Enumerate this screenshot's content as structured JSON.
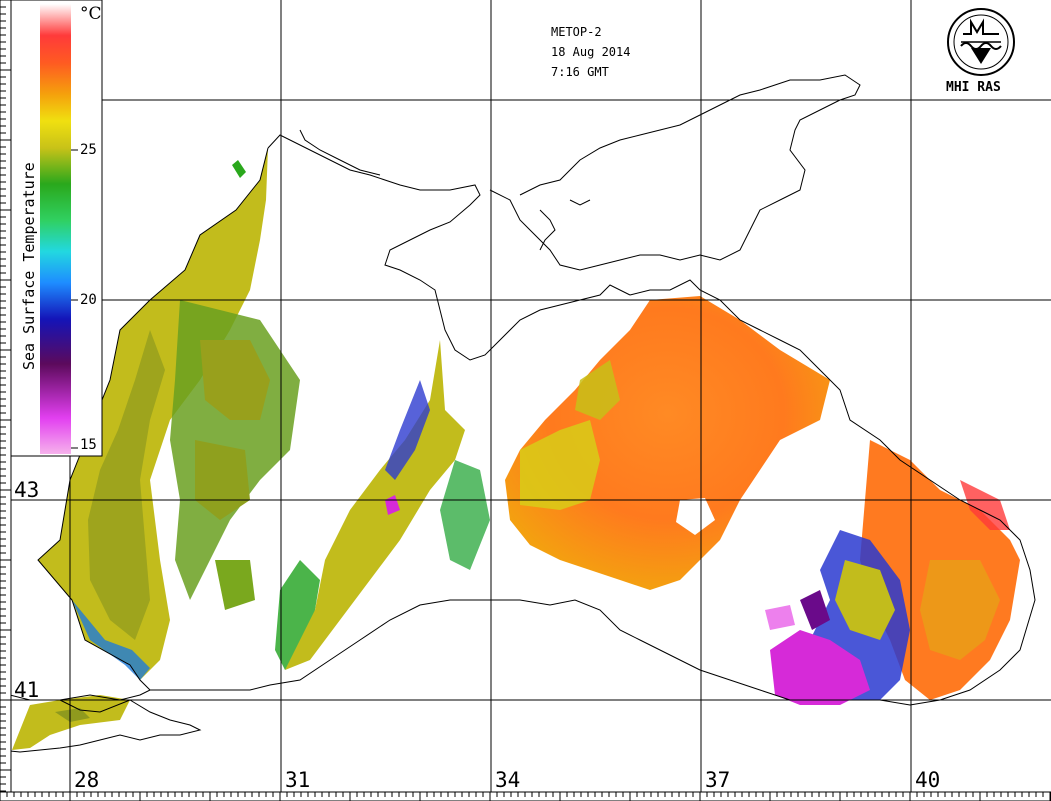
{
  "header": {
    "satellite": "METOP-2",
    "date": "18 Aug 2014",
    "time": "7:16 GMT"
  },
  "organization": "MHI RAS",
  "colorbar": {
    "title": "Sea Surface Temperature",
    "unit": "°C",
    "ticks": [
      "25",
      "20",
      "15"
    ],
    "stops": [
      "#f4a6e6",
      "#e23ff0",
      "#6a0a6a",
      "#1010b0",
      "#1e8cff",
      "#20d8e0",
      "#28d060",
      "#2ea81e",
      "#c6c218",
      "#e6e60a",
      "#f5a00c",
      "#ff6a20",
      "#ff3030",
      "#f7a0b0",
      "#ffffff"
    ]
  },
  "grid": {
    "lon_labels": [
      "28",
      "31",
      "34",
      "37",
      "40"
    ],
    "lat_labels": [
      "43",
      "41"
    ]
  },
  "palette": {
    "land": "#ffffff",
    "warm": "#ff8a22",
    "cool": "#c6bf1e",
    "cold": "#d62ad8"
  }
}
